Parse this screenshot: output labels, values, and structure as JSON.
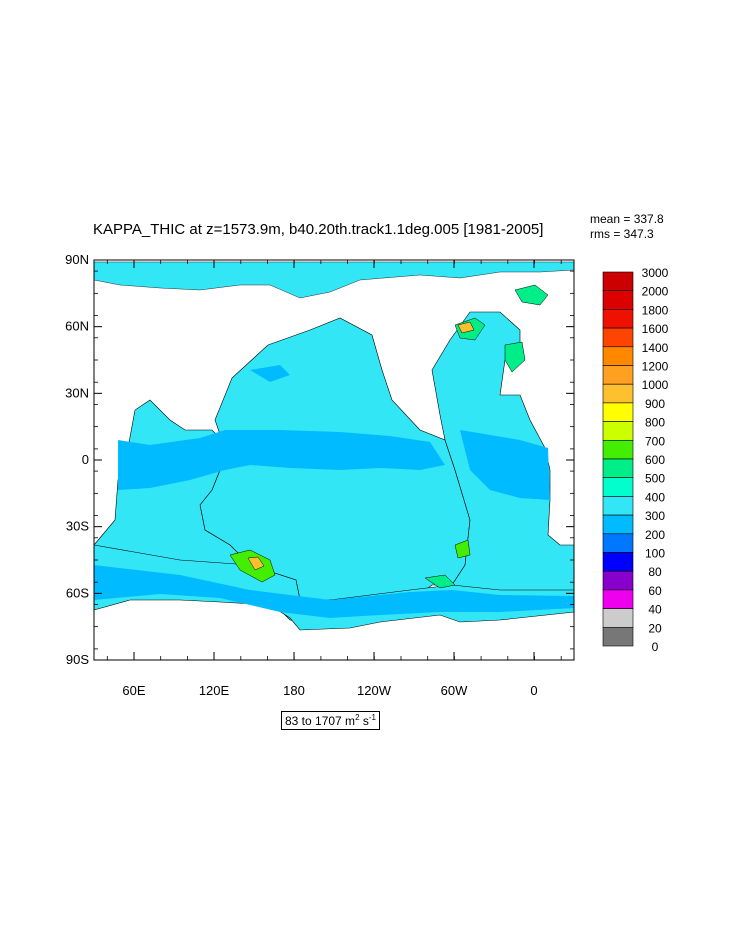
{
  "title": "KAPPA_THIC at z=1573.9m, b40.20th.track1.1deg.005 [1981-2005]",
  "stats": {
    "mean": "mean = 337.8",
    "rms": "rms = 347.3"
  },
  "range": {
    "prefix": "83 to 1707 m",
    "unit_exp1": "2",
    "mid": " s",
    "unit_exp2": "-1"
  },
  "lat_ticks": [
    "90N",
    "60N",
    "30N",
    "0",
    "30S",
    "60S",
    "90S"
  ],
  "lon_ticks": [
    "60E",
    "120E",
    "180",
    "120W",
    "60W",
    "0"
  ],
  "colorbar": {
    "levels": [
      "3000",
      "2000",
      "1800",
      "1600",
      "1400",
      "1200",
      "1000",
      "900",
      "800",
      "700",
      "600",
      "500",
      "400",
      "300",
      "200",
      "100",
      "80",
      "60",
      "40",
      "20",
      "0"
    ],
    "colors": [
      "#cc0000",
      "#dd0000",
      "#ee1100",
      "#ff4400",
      "#ff8800",
      "#ffa020",
      "#ffc030",
      "#ffff00",
      "#ccff00",
      "#44ee00",
      "#00ee88",
      "#00ffcc",
      "#33e6f5",
      "#00bbff",
      "#0077ff",
      "#0000ff",
      "#8800cc",
      "#ee00ee",
      "#cccccc",
      "#777777"
    ]
  },
  "colors": {
    "ocean": "#33e6f5",
    "deeper": "#00bbff",
    "land": "#ffffff"
  }
}
